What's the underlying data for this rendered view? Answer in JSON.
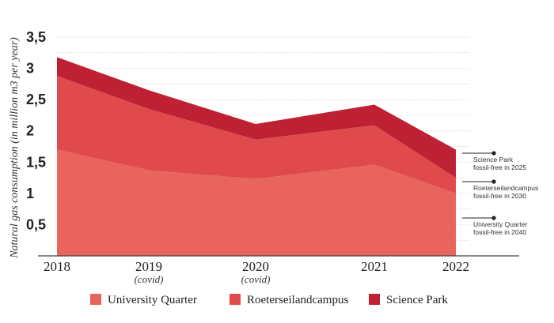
{
  "chart_data": {
    "type": "area",
    "stacked": true,
    "ylabel": "Natural gas consumption (in million m3 per year)",
    "xlabel": "",
    "ylim": [
      0,
      3.5
    ],
    "yticks": [
      "0,5",
      "1",
      "1,5",
      "2",
      "2,5",
      "3",
      "3,5"
    ],
    "ytick_values": [
      0.5,
      1,
      1.5,
      2,
      2.5,
      3,
      3.5
    ],
    "x": [
      2018,
      2019,
      2020,
      2021,
      2022
    ],
    "x_labels": [
      "2018",
      "2019",
      "2020",
      "2021",
      "2022"
    ],
    "x_sublabels": [
      "",
      "(covid)",
      "(covid)",
      "",
      ""
    ],
    "grid": true,
    "legend_position": "bottom",
    "series": [
      {
        "name": "University Quarter",
        "color": "#e8645c",
        "values": [
          1.7,
          1.37,
          1.23,
          1.46,
          1.0
        ]
      },
      {
        "name": "Roeterseilandcampus",
        "color": "#e04a4c",
        "values": [
          1.18,
          0.98,
          0.63,
          0.63,
          0.25
        ]
      },
      {
        "name": "Science Park",
        "color": "#be2133",
        "values": [
          0.3,
          0.3,
          0.25,
          0.33,
          0.45
        ]
      }
    ],
    "annotations": [
      {
        "lines": [
          "Science Park",
          "fossil-free in 2025"
        ]
      },
      {
        "lines": [
          "Roeterseilandcampus",
          "fossil-free in 2030"
        ]
      },
      {
        "lines": [
          "University Quarter",
          "fossil-free in 2040"
        ]
      }
    ]
  }
}
